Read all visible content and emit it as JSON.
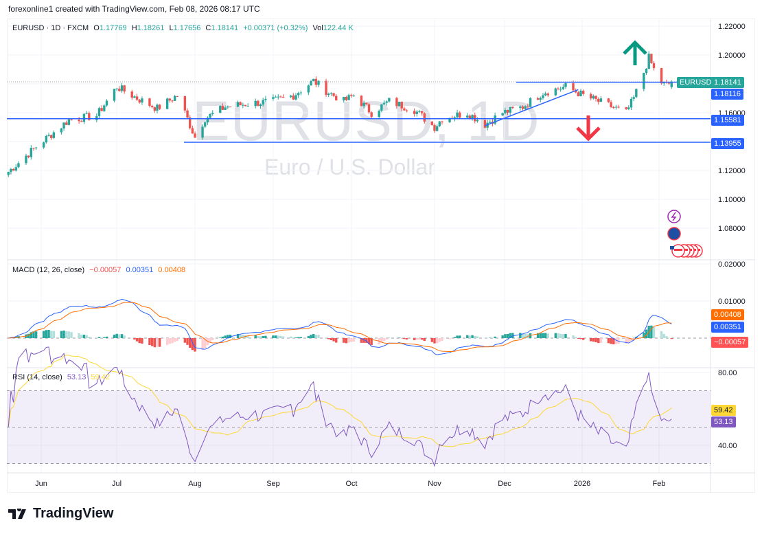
{
  "credit": "forexonline1 created with TradingView.com, Feb 08, 2026 08:17 UTC",
  "symbol_line": {
    "symbol": "EURUSD · 1D · FXCM",
    "o_label": "O",
    "o": "1.17769",
    "h_label": "H",
    "h": "1.18261",
    "l_label": "L",
    "l": "1.17656",
    "c_label": "C",
    "c": "1.18141",
    "change": "+0.00371 (+0.32%)",
    "vol_label": "Vol",
    "vol": "122.44 K"
  },
  "watermark": {
    "title": "EURUSD, 1D",
    "subtitle": "Euro / U.S. Dollar"
  },
  "badges": {
    "symbol": "EURUSD",
    "last": "1.18141",
    "line1": "1.18116",
    "line2": "1.15581",
    "line3": "1.13955",
    "macd_signal": "0.00408",
    "macd": "0.00351",
    "macd_hist": "−0.00057",
    "rsi_ma": "59.42",
    "rsi": "53.13"
  },
  "macd_legend": {
    "label": "MACD (12, 26, close)",
    "hist": "−0.00057",
    "macd": "0.00351",
    "signal": "0.00408"
  },
  "rsi_legend": {
    "label": "RSI (14, close)",
    "rsi": "53.13",
    "ma": "59.42"
  },
  "logo": "TradingView",
  "colors": {
    "up": "#26a69a",
    "down": "#ef5350",
    "lines": "#2962ff",
    "macd": "#2962ff",
    "signal": "#ff6d00",
    "rsi": "#7e57c2",
    "rsi_ma": "#fdd835",
    "arrow_up": "#089981",
    "arrow_down": "#f23645"
  },
  "chart_data": {
    "type": "candlestick",
    "symbol": "EURUSD",
    "interval": "1D",
    "price_ticks": [
      1.22,
      1.2,
      1.16,
      1.12,
      1.1,
      1.08
    ],
    "price_range": [
      1.065,
      1.226
    ],
    "x_ticks": [
      "Jun",
      "Jul",
      "Aug",
      "Sep",
      "Oct",
      "Nov",
      "Dec",
      "2026",
      "Feb"
    ],
    "approx_closes": [
      [
        "2025-05-19",
        1.119
      ],
      [
        "2025-05-29",
        1.135
      ],
      [
        "2025-06-12",
        1.155
      ],
      [
        "2025-06-23",
        1.158
      ],
      [
        "2025-07-01",
        1.178
      ],
      [
        "2025-07-09",
        1.17
      ],
      [
        "2025-07-17",
        1.163
      ],
      [
        "2025-07-25",
        1.172
      ],
      [
        "2025-07-28",
        1.16
      ],
      [
        "2025-08-01",
        1.143
      ],
      [
        "2025-08-05",
        1.156
      ],
      [
        "2025-08-13",
        1.164
      ],
      [
        "2025-08-21",
        1.166
      ],
      [
        "2025-09-01",
        1.168
      ],
      [
        "2025-09-09",
        1.172
      ],
      [
        "2025-09-17",
        1.182
      ],
      [
        "2025-09-23",
        1.174
      ],
      [
        "2025-09-29",
        1.168
      ],
      [
        "2025-10-03",
        1.172
      ],
      [
        "2025-10-10",
        1.16
      ],
      [
        "2025-10-17",
        1.168
      ],
      [
        "2025-10-27",
        1.162
      ],
      [
        "2025-11-04",
        1.15
      ],
      [
        "2025-11-07",
        1.156
      ],
      [
        "2025-11-17",
        1.16
      ],
      [
        "2025-11-24",
        1.152
      ],
      [
        "2025-12-01",
        1.16
      ],
      [
        "2025-12-09",
        1.164
      ],
      [
        "2025-12-17",
        1.174
      ],
      [
        "2025-12-26",
        1.178
      ],
      [
        "2026-01-02",
        1.172
      ],
      [
        "2026-01-12",
        1.165
      ],
      [
        "2026-01-19",
        1.16
      ],
      [
        "2026-01-22",
        1.17
      ],
      [
        "2026-01-26",
        1.188
      ],
      [
        "2026-01-28",
        1.198
      ],
      [
        "2026-01-30",
        1.19
      ],
      [
        "2026-02-02",
        1.181
      ],
      [
        "2026-02-04",
        1.179
      ],
      [
        "2026-02-06",
        1.18141
      ]
    ],
    "horizontal_lines": [
      1.18116,
      1.15581,
      1.13955
    ],
    "trendline": [
      [
        "2025-11-24",
        1.151
      ],
      [
        "2025-12-31",
        1.176
      ]
    ],
    "macd": {
      "params": [
        12,
        26
      ],
      "ticks": [
        0.02,
        0.01
      ],
      "last": {
        "hist": -0.00057,
        "macd": 0.00351,
        "signal": 0.00408
      }
    },
    "rsi": {
      "period": 14,
      "ticks": [
        80,
        40
      ],
      "bands": [
        70,
        30
      ],
      "last": {
        "rsi": 53.13,
        "ma": 59.42
      }
    }
  }
}
